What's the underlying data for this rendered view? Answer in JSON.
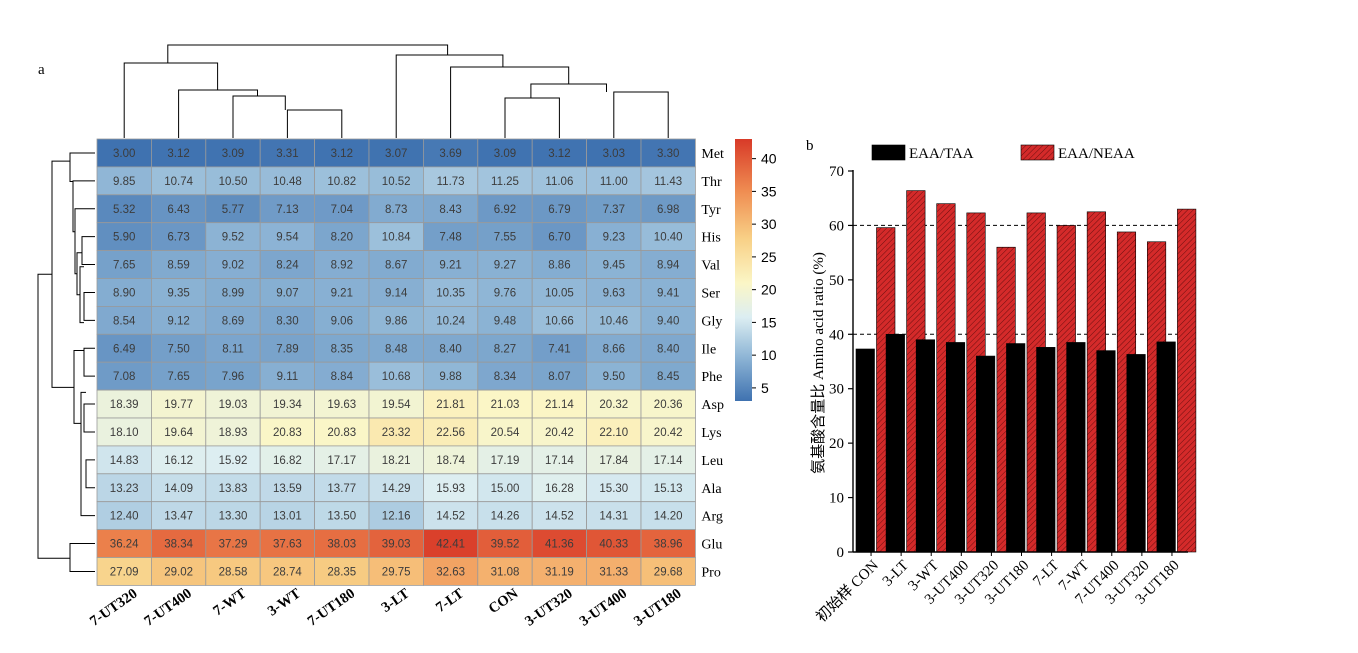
{
  "panel_a_label": "a",
  "panel_b_label": "b",
  "chart_data": [
    {
      "type": "heatmap",
      "columns": [
        "7-UT320",
        "7-UT400",
        "7-WT",
        "3-WT",
        "7-UT180",
        "3-LT",
        "7-LT",
        "CON",
        "3-UT320",
        "3-UT400",
        "3-UT180"
      ],
      "rows": [
        "Met",
        "Thr",
        "Tyr",
        "His",
        "Val",
        "Ser",
        "Gly",
        "Ile",
        "Phe",
        "Asp",
        "Lys",
        "Leu",
        "Ala",
        "Arg",
        "Glu",
        "Pro"
      ],
      "values": [
        [
          3.0,
          3.12,
          3.09,
          3.31,
          3.12,
          3.07,
          3.69,
          3.09,
          3.12,
          3.03,
          3.3
        ],
        [
          9.85,
          10.74,
          10.5,
          10.48,
          10.82,
          10.52,
          11.73,
          11.25,
          11.06,
          11.0,
          11.43
        ],
        [
          5.32,
          6.43,
          5.77,
          7.13,
          7.04,
          8.73,
          8.43,
          6.92,
          6.79,
          7.37,
          6.98
        ],
        [
          5.9,
          6.73,
          9.52,
          9.54,
          8.2,
          10.84,
          7.48,
          7.55,
          6.7,
          9.23,
          10.4
        ],
        [
          7.65,
          8.59,
          9.02,
          8.24,
          8.92,
          8.67,
          9.21,
          9.27,
          8.86,
          9.45,
          8.94
        ],
        [
          8.9,
          9.35,
          8.99,
          9.07,
          9.21,
          9.14,
          10.35,
          9.76,
          10.05,
          9.63,
          9.41
        ],
        [
          8.54,
          9.12,
          8.69,
          8.3,
          9.06,
          9.86,
          10.24,
          9.48,
          10.66,
          10.46,
          9.4
        ],
        [
          6.49,
          7.5,
          8.11,
          7.89,
          8.35,
          8.48,
          8.4,
          8.27,
          7.41,
          8.66,
          8.4
        ],
        [
          7.08,
          7.65,
          7.96,
          9.11,
          8.84,
          10.68,
          9.88,
          8.34,
          8.07,
          9.5,
          8.45
        ],
        [
          18.39,
          19.77,
          19.03,
          19.34,
          19.63,
          19.54,
          21.81,
          21.03,
          21.14,
          20.32,
          20.36
        ],
        [
          18.1,
          19.64,
          18.93,
          20.83,
          20.83,
          23.32,
          22.56,
          20.54,
          20.42,
          22.1,
          20.42
        ],
        [
          14.83,
          16.12,
          15.92,
          16.82,
          17.17,
          18.21,
          18.74,
          17.19,
          17.14,
          17.84,
          17.14
        ],
        [
          13.23,
          14.09,
          13.83,
          13.59,
          13.77,
          14.29,
          15.93,
          15.0,
          16.28,
          15.3,
          15.13
        ],
        [
          12.4,
          13.47,
          13.3,
          13.01,
          13.5,
          12.16,
          14.52,
          14.26,
          14.52,
          14.31,
          14.2
        ],
        [
          36.24,
          38.34,
          37.29,
          37.63,
          38.03,
          39.03,
          42.41,
          39.52,
          41.36,
          40.33,
          38.96
        ],
        [
          27.09,
          29.02,
          28.58,
          28.74,
          28.35,
          29.75,
          32.63,
          31.08,
          31.19,
          31.33,
          29.68
        ]
      ],
      "colorbar_ticks": [
        "40",
        "35",
        "30",
        "25",
        "20",
        "15",
        "10",
        "5"
      ],
      "colorbar_range": [
        3,
        43
      ],
      "colors": {
        "low": "#3f72b0",
        "mid": "#fbf6c6",
        "high": "#d83a28"
      }
    },
    {
      "type": "bar",
      "categories": [
        "初始样 CON",
        "3-LT",
        "3-WT",
        "3-UT400",
        "3-UT320",
        "3-UT180",
        "7-LT",
        "7-WT",
        "7-UT400",
        "3-UT320",
        "3-UT180"
      ],
      "series": [
        {
          "name": "EAA/TAA",
          "values": [
            37.3,
            40.0,
            39.0,
            38.5,
            36.0,
            38.3,
            37.6,
            38.5,
            37.0,
            36.3,
            38.6
          ],
          "color": "#000000"
        },
        {
          "name": "EAA/NEAA",
          "values": [
            59.6,
            66.4,
            64.0,
            62.3,
            56.0,
            62.3,
            60.0,
            62.5,
            58.8,
            57.0,
            63.0
          ],
          "color": "#d42a2a"
        }
      ],
      "ylabel": "氨基酸含量比 Amino acid ratio (%)",
      "ylim": [
        0,
        70
      ],
      "yticks": [
        "0",
        "10",
        "20",
        "30",
        "40",
        "50",
        "60",
        "70"
      ],
      "gridlines_dashed": [
        40,
        60
      ]
    }
  ]
}
